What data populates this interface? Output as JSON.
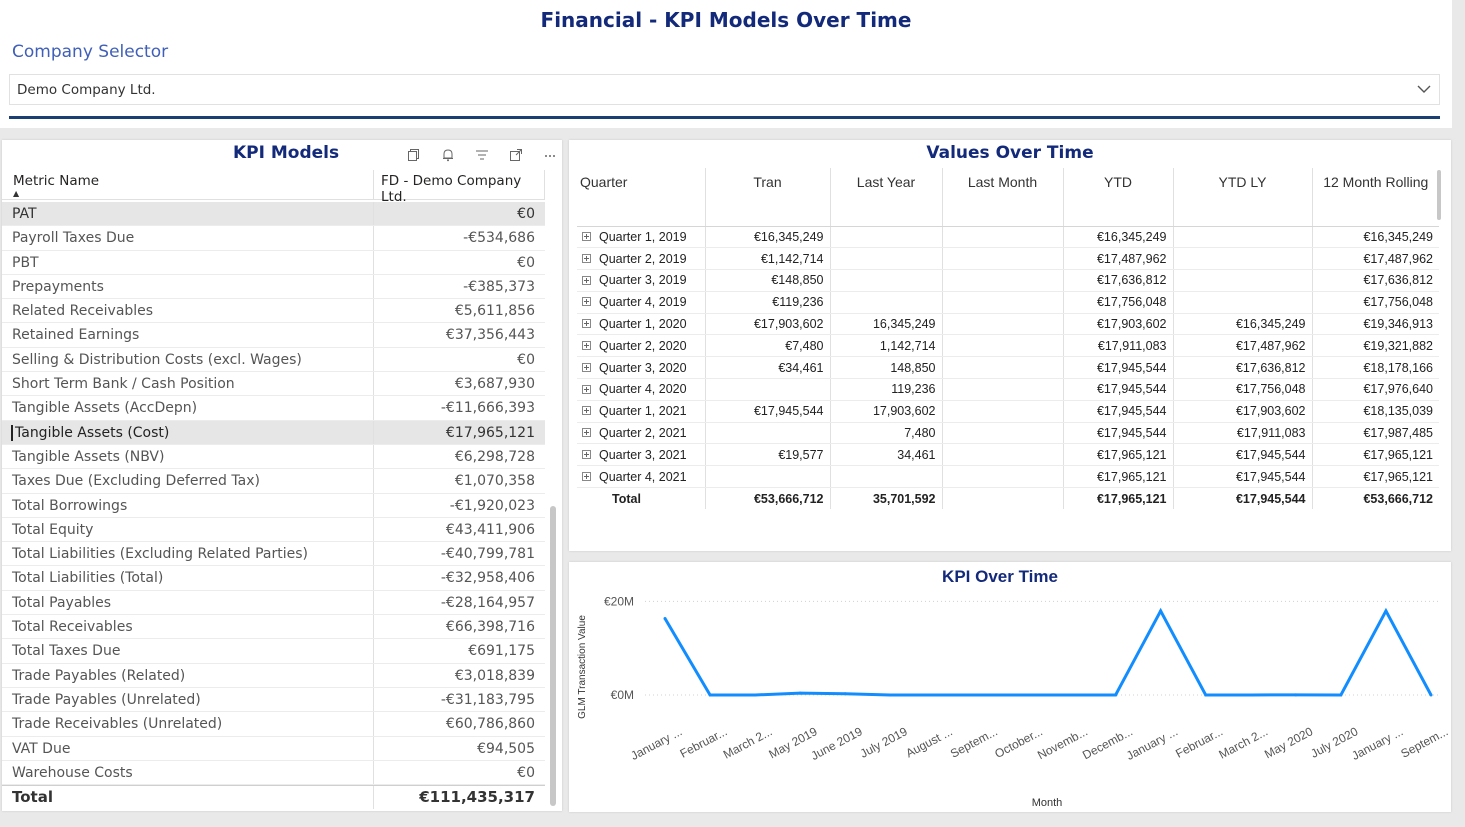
{
  "report": {
    "title": "Financial - KPI Models Over Time",
    "selector_label": "Company Selector",
    "selector_value": "Demo Company Ltd."
  },
  "kpi": {
    "title": "KPI Models",
    "col_metric": "Metric Name",
    "col_value": "FD - Demo Company Ltd.",
    "rows": [
      {
        "name": "PAT",
        "value": "€0"
      },
      {
        "name": "Payroll Taxes Due",
        "value": "-€534,686"
      },
      {
        "name": "PBT",
        "value": "€0"
      },
      {
        "name": "Prepayments",
        "value": "-€385,373"
      },
      {
        "name": "Related Receivables",
        "value": "€5,611,856"
      },
      {
        "name": "Retained Earnings",
        "value": "€37,356,443"
      },
      {
        "name": "Selling & Distribution Costs (excl. Wages)",
        "value": "€0"
      },
      {
        "name": "Short Term Bank / Cash Position",
        "value": "€3,687,930"
      },
      {
        "name": "Tangible Assets (AccDepn)",
        "value": "-€11,666,393"
      },
      {
        "name": "Tangible Assets (Cost)",
        "value": "€17,965,121"
      },
      {
        "name": "Tangible Assets (NBV)",
        "value": "€6,298,728"
      },
      {
        "name": "Taxes Due (Excluding Deferred Tax)",
        "value": "€1,070,358"
      },
      {
        "name": "Total Borrowings",
        "value": "-€1,920,023"
      },
      {
        "name": "Total Equity",
        "value": "€43,411,906"
      },
      {
        "name": "Total Liabilities (Excluding Related Parties)",
        "value": "-€40,799,781"
      },
      {
        "name": "Total Liabilities (Total)",
        "value": "-€32,958,406"
      },
      {
        "name": "Total Payables",
        "value": "-€28,164,957"
      },
      {
        "name": "Total Receivables",
        "value": "€66,398,716"
      },
      {
        "name": "Total Taxes Due",
        "value": "€691,175"
      },
      {
        "name": "Trade Payables (Related)",
        "value": "€3,018,839"
      },
      {
        "name": "Trade Payables (Unrelated)",
        "value": "-€31,183,795"
      },
      {
        "name": "Trade Receivables (Unrelated)",
        "value": "€60,786,860"
      },
      {
        "name": "VAT Due",
        "value": "€94,505"
      },
      {
        "name": "Warehouse Costs",
        "value": "€0"
      }
    ],
    "total_label": "Total",
    "total_value": "€111,435,317"
  },
  "values_over_time": {
    "title": "Values Over Time",
    "columns": [
      "Quarter",
      "Tran",
      "Last Year",
      "Last Month",
      "YTD",
      "YTD LY",
      "12 Month Rolling"
    ],
    "rows": [
      [
        "Quarter 1, 2019",
        "€16,345,249",
        "",
        "",
        "€16,345,249",
        "",
        "€16,345,249"
      ],
      [
        "Quarter 2, 2019",
        "€1,142,714",
        "",
        "",
        "€17,487,962",
        "",
        "€17,487,962"
      ],
      [
        "Quarter 3, 2019",
        "€148,850",
        "",
        "",
        "€17,636,812",
        "",
        "€17,636,812"
      ],
      [
        "Quarter 4, 2019",
        "€119,236",
        "",
        "",
        "€17,756,048",
        "",
        "€17,756,048"
      ],
      [
        "Quarter 1, 2020",
        "€17,903,602",
        "16,345,249",
        "",
        "€17,903,602",
        "€16,345,249",
        "€19,346,913"
      ],
      [
        "Quarter 2, 2020",
        "€7,480",
        "1,142,714",
        "",
        "€17,911,083",
        "€17,487,962",
        "€19,321,882"
      ],
      [
        "Quarter 3, 2020",
        "€34,461",
        "148,850",
        "",
        "€17,945,544",
        "€17,636,812",
        "€18,178,166"
      ],
      [
        "Quarter 4, 2020",
        "",
        "119,236",
        "",
        "€17,945,544",
        "€17,756,048",
        "€17,976,640"
      ],
      [
        "Quarter 1, 2021",
        "€17,945,544",
        "17,903,602",
        "",
        "€17,945,544",
        "€17,903,602",
        "€18,135,039"
      ],
      [
        "Quarter 2, 2021",
        "",
        "7,480",
        "",
        "€17,945,544",
        "€17,911,083",
        "€17,987,485"
      ],
      [
        "Quarter 3, 2021",
        "€19,577",
        "34,461",
        "",
        "€17,965,121",
        "€17,945,544",
        "€17,965,121"
      ],
      [
        "Quarter 4, 2021",
        "",
        "",
        "",
        "€17,965,121",
        "€17,945,544",
        "€17,965,121"
      ]
    ],
    "total": [
      "Total",
      "€53,666,712",
      "35,701,592",
      "",
      "€17,965,121",
      "€17,945,544",
      "€53,666,712"
    ]
  },
  "chart_data": {
    "type": "line",
    "title": "KPI Over Time",
    "xlabel": "Month",
    "ylabel": "GLM Transaction Value",
    "y_tick_labels": [
      "€20M",
      "€0M"
    ],
    "y_ticks": [
      20000000,
      0
    ],
    "ylim": [
      -1500000,
      22000000
    ],
    "x": [
      "January ...",
      "Februar...",
      "March 2...",
      "May 2019",
      "June 2019",
      "July 2019",
      "August ...",
      "Septem...",
      "October...",
      "Novemb...",
      "Decemb...",
      "January ...",
      "Februar...",
      "March 2...",
      "May 2020",
      "July 2020",
      "January ...",
      "Septem..."
    ],
    "values": [
      16345249,
      0,
      0,
      400000,
      250000,
      0,
      0,
      0,
      0,
      0,
      0,
      17945544,
      0,
      7480,
      34461,
      0,
      17945544,
      0
    ],
    "color": "#118dff",
    "grid": true
  }
}
